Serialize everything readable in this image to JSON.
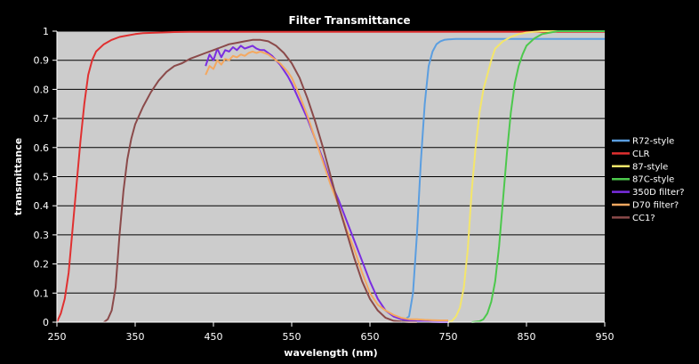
{
  "chart_data": {
    "type": "line",
    "title": "Filter Transmittance",
    "xlabel": "wavelength (nm)",
    "ylabel": "transmittance",
    "xlim": [
      250,
      950
    ],
    "ylim": [
      0,
      1
    ],
    "xticks": [
      250,
      350,
      450,
      550,
      650,
      750,
      850,
      950
    ],
    "yticks": [
      0,
      0.1,
      0.2,
      0.3,
      0.4,
      0.5,
      0.6,
      0.7,
      0.8,
      0.9,
      1
    ],
    "ytick_labels": [
      "0",
      "0.1",
      "0.2",
      "0.3",
      "0.4",
      "0.5",
      "0.6",
      "0.7",
      "0.8",
      "0.9",
      "1"
    ],
    "grid": "horizontal",
    "legend_position": "right",
    "plot_background": "#cccccc",
    "series": [
      {
        "name": "R72-style",
        "color": "#5b9ee0",
        "x": [
          690,
          700,
          705,
          710,
          715,
          720,
          725,
          730,
          735,
          740,
          745,
          750,
          760,
          800,
          900,
          950
        ],
        "y": [
          0,
          0.02,
          0.1,
          0.3,
          0.55,
          0.75,
          0.88,
          0.93,
          0.955,
          0.965,
          0.97,
          0.972,
          0.973,
          0.973,
          0.973,
          0.973
        ]
      },
      {
        "name": "CLR",
        "color": "#e03030",
        "x": [
          250,
          255,
          260,
          265,
          270,
          275,
          280,
          285,
          290,
          295,
          300,
          310,
          320,
          330,
          340,
          350,
          360,
          380,
          400,
          420,
          450,
          500,
          600,
          700,
          800,
          900,
          950
        ],
        "y": [
          0,
          0.03,
          0.08,
          0.17,
          0.32,
          0.47,
          0.62,
          0.75,
          0.85,
          0.9,
          0.93,
          0.955,
          0.97,
          0.98,
          0.985,
          0.99,
          0.993,
          0.995,
          0.997,
          0.998,
          0.998,
          0.998,
          0.998,
          0.998,
          0.998,
          0.998,
          0.998
        ]
      },
      {
        "name": "87-style",
        "color": "#f4e66a",
        "x": [
          750,
          755,
          760,
          765,
          770,
          775,
          780,
          785,
          790,
          795,
          800,
          805,
          810,
          820,
          830,
          840,
          850,
          860,
          870,
          880,
          950
        ],
        "y": [
          0,
          0.005,
          0.02,
          0.05,
          0.12,
          0.25,
          0.45,
          0.6,
          0.72,
          0.8,
          0.85,
          0.9,
          0.94,
          0.965,
          0.98,
          0.99,
          0.995,
          0.998,
          1,
          1,
          1
        ]
      },
      {
        "name": "87C-style",
        "color": "#4cc84c",
        "x": [
          780,
          790,
          795,
          800,
          805,
          810,
          815,
          820,
          825,
          830,
          835,
          840,
          845,
          850,
          860,
          870,
          880,
          890,
          900,
          950
        ],
        "y": [
          0,
          0.003,
          0.01,
          0.03,
          0.07,
          0.14,
          0.26,
          0.42,
          0.58,
          0.72,
          0.82,
          0.88,
          0.92,
          0.95,
          0.975,
          0.99,
          0.995,
          1,
          1,
          1
        ]
      },
      {
        "name": "350D filter?",
        "color": "#7a2de0",
        "x": [
          440,
          445,
          450,
          455,
          460,
          465,
          470,
          475,
          480,
          485,
          490,
          495,
          500,
          505,
          510,
          515,
          520,
          525,
          530,
          535,
          540,
          545,
          550,
          555,
          560,
          570,
          580,
          590,
          600,
          610,
          620,
          630,
          640,
          650,
          660,
          670,
          680,
          690,
          700,
          710,
          720,
          730,
          740,
          750
        ],
        "y": [
          0.88,
          0.92,
          0.9,
          0.94,
          0.91,
          0.935,
          0.93,
          0.945,
          0.935,
          0.95,
          0.94,
          0.945,
          0.95,
          0.94,
          0.935,
          0.935,
          0.925,
          0.915,
          0.9,
          0.885,
          0.865,
          0.845,
          0.82,
          0.79,
          0.76,
          0.7,
          0.63,
          0.56,
          0.48,
          0.42,
          0.35,
          0.28,
          0.21,
          0.14,
          0.08,
          0.04,
          0.02,
          0.01,
          0.005,
          0.003,
          0.002,
          0.001,
          0,
          0
        ]
      },
      {
        "name": "D70 filter?",
        "color": "#f4a860",
        "x": [
          440,
          445,
          450,
          455,
          460,
          465,
          470,
          475,
          480,
          485,
          490,
          495,
          500,
          505,
          510,
          515,
          520,
          525,
          530,
          535,
          540,
          545,
          550,
          560,
          570,
          580,
          590,
          600,
          610,
          620,
          630,
          640,
          650,
          660,
          670,
          680,
          690,
          700,
          710,
          720,
          730,
          740,
          750
        ],
        "y": [
          0.85,
          0.88,
          0.87,
          0.9,
          0.885,
          0.905,
          0.9,
          0.915,
          0.91,
          0.92,
          0.915,
          0.925,
          0.93,
          0.925,
          0.93,
          0.925,
          0.92,
          0.91,
          0.9,
          0.89,
          0.875,
          0.86,
          0.84,
          0.78,
          0.71,
          0.63,
          0.55,
          0.47,
          0.4,
          0.32,
          0.25,
          0.17,
          0.1,
          0.06,
          0.04,
          0.025,
          0.015,
          0.01,
          0.01,
          0.008,
          0.007,
          0.006,
          0.006
        ]
      },
      {
        "name": "CC1?",
        "color": "#8b4a4a",
        "x": [
          310,
          315,
          320,
          325,
          330,
          335,
          340,
          345,
          350,
          360,
          370,
          380,
          390,
          400,
          410,
          420,
          430,
          440,
          450,
          460,
          470,
          480,
          490,
          500,
          510,
          520,
          530,
          540,
          550,
          560,
          570,
          580,
          590,
          600,
          610,
          620,
          630,
          640,
          650,
          660,
          670,
          680,
          690,
          700,
          710
        ],
        "y": [
          0,
          0.01,
          0.04,
          0.12,
          0.3,
          0.45,
          0.56,
          0.63,
          0.68,
          0.74,
          0.79,
          0.83,
          0.86,
          0.88,
          0.89,
          0.905,
          0.915,
          0.925,
          0.935,
          0.945,
          0.955,
          0.96,
          0.965,
          0.97,
          0.97,
          0.965,
          0.95,
          0.925,
          0.89,
          0.84,
          0.77,
          0.69,
          0.6,
          0.5,
          0.4,
          0.31,
          0.22,
          0.14,
          0.08,
          0.04,
          0.015,
          0.005,
          0.002,
          0,
          0
        ]
      }
    ]
  }
}
